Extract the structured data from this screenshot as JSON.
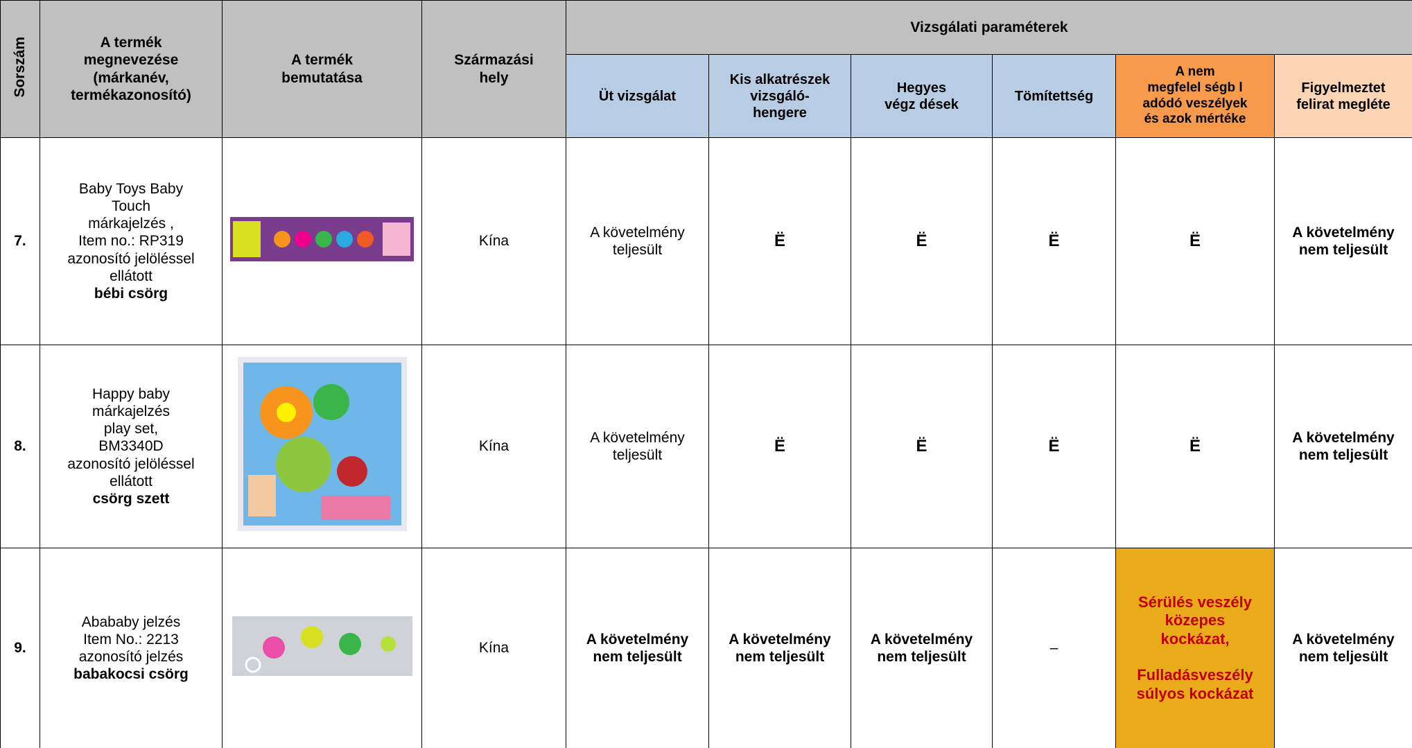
{
  "header": {
    "number": "Sorszám",
    "product_name": "A termék\nmegnevezése\n(márkanév,\ntermékazonosító)",
    "presentation": "A termék\nbemutatása",
    "origin": "Származási\nhely",
    "group": "Vizsgálati paraméterek",
    "params": [
      "Üt   vizsgálat",
      "Kis alkatrészek\nvizsgáló-\nhengere",
      "Hegyes\nvégz  dések",
      "Tömítettség",
      "A nem\nmegfelel  ségb  l\nadódó veszélyek\nés azok mértéke",
      "Figyelmeztet\nfelirat megléte"
    ]
  },
  "rows": [
    {
      "number": "7.",
      "name": "Baby Toys Baby\nTouch\nmárkajelzés  ,\nItem no.: RP319\nazonosító jelöléssel\nellátott",
      "product": "bébi csörg",
      "origin": "Kína",
      "results": [
        "A követelmény\nteljesült",
        "Ë",
        "Ë",
        "Ë",
        "Ë",
        "A követelmény\nnem teljesült"
      ]
    },
    {
      "number": "8.",
      "name": "Happy baby\nmárkajelzés\nplay set,\nBM3340D\nazonosító jelöléssel\nellátott",
      "product": "csörg   szett",
      "origin": "Kína",
      "results": [
        "A követelmény\nteljesült",
        "Ë",
        "Ë",
        "Ë",
        "Ë",
        "A követelmény\nnem teljesült"
      ]
    },
    {
      "number": "9.",
      "name": "Abababy jelzés\nItem No.: 2213\nazonosító jelzés",
      "product": "babakocsi csörg",
      "origin": "Kína",
      "results": [
        "A követelmény\nnem teljesült",
        "A követelmény\nnem teljesült",
        "A követelmény\nnem teljesült",
        "–",
        [
          "Sérülés veszély\nközepes\nkockázat,",
          "Fulladásveszély\nsúlyos kockázat"
        ],
        "A követelmény\nnem teljesült"
      ]
    }
  ]
}
